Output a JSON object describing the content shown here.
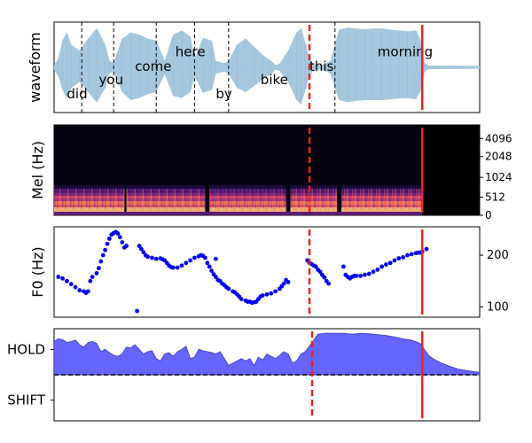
{
  "chart_data": [
    {
      "type": "area",
      "ylabel": "waveform",
      "words": [
        {
          "text": "did",
          "x": 0.03,
          "y": -0.65
        },
        {
          "text": "you",
          "x": 0.105,
          "y": -0.3
        },
        {
          "text": "come",
          "x": 0.19,
          "y": 0.02
        },
        {
          "text": "here",
          "x": 0.285,
          "y": 0.38
        },
        {
          "text": "by",
          "x": 0.38,
          "y": -0.65
        },
        {
          "text": "bike",
          "x": 0.485,
          "y": -0.3
        },
        {
          "text": "this",
          "x": 0.6,
          "y": 0.02
        },
        {
          "text": "morning",
          "x": 0.76,
          "y": 0.38
        }
      ],
      "word_boundaries": [
        0.065,
        0.14,
        0.24,
        0.33,
        0.41,
        0.66
      ],
      "envelope_x": [
        0.0,
        0.01,
        0.02,
        0.03,
        0.04,
        0.06,
        0.08,
        0.1,
        0.12,
        0.13,
        0.14,
        0.16,
        0.18,
        0.2,
        0.22,
        0.24,
        0.26,
        0.28,
        0.3,
        0.32,
        0.33,
        0.35,
        0.37,
        0.38,
        0.4,
        0.41,
        0.43,
        0.45,
        0.47,
        0.49,
        0.51,
        0.52,
        0.53,
        0.55,
        0.57,
        0.58,
        0.59,
        0.6,
        0.61,
        0.63,
        0.65,
        0.66,
        0.67,
        0.69,
        0.71,
        0.73,
        0.75,
        0.77,
        0.79,
        0.81,
        0.83,
        0.85,
        0.86,
        0.87,
        0.88,
        1.0
      ],
      "envelope_top": [
        0.05,
        0.2,
        0.65,
        0.85,
        0.55,
        0.4,
        0.7,
        0.95,
        0.55,
        0.15,
        0.1,
        0.7,
        0.85,
        0.8,
        0.7,
        0.65,
        0.15,
        0.8,
        0.9,
        0.75,
        0.2,
        0.72,
        0.65,
        0.15,
        0.1,
        0.15,
        0.55,
        0.7,
        0.5,
        0.3,
        0.15,
        0.05,
        0.08,
        0.4,
        0.85,
        0.95,
        0.6,
        0.2,
        0.05,
        0.05,
        0.15,
        0.55,
        0.92,
        0.97,
        0.95,
        0.93,
        0.95,
        0.95,
        0.92,
        0.9,
        0.88,
        0.9,
        0.7,
        0.1,
        0.04,
        0.03
      ],
      "envelope_bottom": [
        0.05,
        0.2,
        0.55,
        0.75,
        0.5,
        0.35,
        0.6,
        0.85,
        0.5,
        0.15,
        0.1,
        0.6,
        0.8,
        0.75,
        0.65,
        0.6,
        0.15,
        0.7,
        0.75,
        0.6,
        0.2,
        0.62,
        0.55,
        0.15,
        0.1,
        0.15,
        0.5,
        0.6,
        0.45,
        0.3,
        0.15,
        0.05,
        0.08,
        0.35,
        0.8,
        0.9,
        0.55,
        0.2,
        0.05,
        0.05,
        0.15,
        0.5,
        0.8,
        0.85,
        0.82,
        0.8,
        0.8,
        0.8,
        0.78,
        0.76,
        0.75,
        0.78,
        0.6,
        0.1,
        0.04,
        0.03
      ],
      "ylim": [
        -1,
        1
      ],
      "colors": {
        "waveform": "#a6c8de",
        "boundary": "#000000",
        "event": "#ee2222"
      }
    },
    {
      "type": "heatmap",
      "ylabel": "Mel (Hz)",
      "y_ticks": [
        "4096",
        "2048",
        "1024",
        "512",
        "0"
      ],
      "y_tick_positions": [
        0.85,
        0.65,
        0.42,
        0.2,
        0.0
      ],
      "speech_end": 0.865,
      "segments": [
        [
          0.0,
          0.165
        ],
        [
          0.17,
          0.355
        ],
        [
          0.365,
          0.545
        ],
        [
          0.555,
          0.665
        ],
        [
          0.675,
          0.865
        ]
      ],
      "colors": {
        "background": "#040410",
        "band_low": "#f2a570",
        "band_mid": "#c0365e",
        "band_high": "#5b1b78"
      }
    },
    {
      "type": "scatter",
      "ylabel": "F0 (Hz)",
      "y_ticks": [
        100,
        200
      ],
      "ylim": [
        80,
        255
      ],
      "points": [
        [
          0.01,
          158
        ],
        [
          0.02,
          155
        ],
        [
          0.03,
          150
        ],
        [
          0.04,
          144
        ],
        [
          0.05,
          138
        ],
        [
          0.06,
          132
        ],
        [
          0.07,
          130
        ],
        [
          0.075,
          127
        ],
        [
          0.08,
          130
        ],
        [
          0.085,
          150
        ],
        [
          0.09,
          158
        ],
        [
          0.1,
          165
        ],
        [
          0.105,
          175
        ],
        [
          0.11,
          188
        ],
        [
          0.115,
          200
        ],
        [
          0.12,
          210
        ],
        [
          0.125,
          222
        ],
        [
          0.13,
          232
        ],
        [
          0.135,
          240
        ],
        [
          0.14,
          243
        ],
        [
          0.145,
          245
        ],
        [
          0.15,
          242
        ],
        [
          0.155,
          235
        ],
        [
          0.16,
          225
        ],
        [
          0.165,
          215
        ],
        [
          0.17,
          218
        ],
        [
          0.195,
          92
        ],
        [
          0.2,
          218
        ],
        [
          0.205,
          212
        ],
        [
          0.21,
          206
        ],
        [
          0.215,
          200
        ],
        [
          0.22,
          197
        ],
        [
          0.23,
          195
        ],
        [
          0.24,
          193
        ],
        [
          0.25,
          194
        ],
        [
          0.255,
          192
        ],
        [
          0.26,
          190
        ],
        [
          0.265,
          185
        ],
        [
          0.27,
          180
        ],
        [
          0.275,
          177
        ],
        [
          0.28,
          176
        ],
        [
          0.29,
          176
        ],
        [
          0.3,
          180
        ],
        [
          0.31,
          185
        ],
        [
          0.32,
          190
        ],
        [
          0.33,
          195
        ],
        [
          0.34,
          198
        ],
        [
          0.345,
          200
        ],
        [
          0.35,
          199
        ],
        [
          0.355,
          195
        ],
        [
          0.36,
          185
        ],
        [
          0.365,
          178
        ],
        [
          0.37,
          170
        ],
        [
          0.375,
          163
        ],
        [
          0.38,
          158
        ],
        [
          0.385,
          152
        ],
        [
          0.39,
          150
        ],
        [
          0.395,
          145
        ],
        [
          0.4,
          142
        ],
        [
          0.405,
          138
        ],
        [
          0.41,
          135
        ],
        [
          0.42,
          130
        ],
        [
          0.425,
          128
        ],
        [
          0.43,
          124
        ],
        [
          0.435,
          120
        ],
        [
          0.44,
          115
        ],
        [
          0.45,
          112
        ],
        [
          0.455,
          110
        ],
        [
          0.46,
          110
        ],
        [
          0.465,
          108
        ],
        [
          0.47,
          109
        ],
        [
          0.475,
          110
        ],
        [
          0.48,
          115
        ],
        [
          0.485,
          120
        ],
        [
          0.49,
          122
        ],
        [
          0.5,
          124
        ],
        [
          0.51,
          126
        ],
        [
          0.52,
          130
        ],
        [
          0.53,
          135
        ],
        [
          0.535,
          140
        ],
        [
          0.54,
          145
        ],
        [
          0.545,
          152
        ],
        [
          0.55,
          148
        ],
        [
          0.38,
          193
        ],
        [
          0.595,
          190
        ],
        [
          0.6,
          185
        ],
        [
          0.605,
          183
        ],
        [
          0.61,
          180
        ],
        [
          0.615,
          178
        ],
        [
          0.62,
          172
        ],
        [
          0.625,
          168
        ],
        [
          0.63,
          162
        ],
        [
          0.635,
          157
        ],
        [
          0.64,
          150
        ],
        [
          0.645,
          145
        ],
        [
          0.68,
          178
        ],
        [
          0.685,
          162
        ],
        [
          0.69,
          158
        ],
        [
          0.695,
          155
        ],
        [
          0.7,
          158
        ],
        [
          0.705,
          160
        ],
        [
          0.71,
          160
        ],
        [
          0.72,
          160
        ],
        [
          0.73,
          162
        ],
        [
          0.74,
          164
        ],
        [
          0.75,
          168
        ],
        [
          0.76,
          172
        ],
        [
          0.77,
          178
        ],
        [
          0.78,
          182
        ],
        [
          0.79,
          185
        ],
        [
          0.8,
          190
        ],
        [
          0.81,
          194
        ],
        [
          0.82,
          196
        ],
        [
          0.83,
          200
        ],
        [
          0.84,
          202
        ],
        [
          0.85,
          204
        ],
        [
          0.855,
          205
        ],
        [
          0.86,
          205
        ],
        [
          0.865,
          207
        ],
        [
          0.875,
          212
        ]
      ],
      "colors": {
        "points": "#0000ee"
      }
    },
    {
      "type": "area",
      "y_tick_labels": [
        "HOLD",
        "SHIFT"
      ],
      "ylim": [
        -1,
        1
      ],
      "baseline": 0,
      "x": [
        0.0,
        0.01,
        0.02,
        0.03,
        0.04,
        0.05,
        0.06,
        0.07,
        0.08,
        0.09,
        0.1,
        0.11,
        0.12,
        0.13,
        0.14,
        0.15,
        0.16,
        0.17,
        0.18,
        0.19,
        0.2,
        0.21,
        0.22,
        0.23,
        0.24,
        0.25,
        0.26,
        0.27,
        0.28,
        0.29,
        0.3,
        0.31,
        0.32,
        0.33,
        0.34,
        0.35,
        0.36,
        0.37,
        0.38,
        0.39,
        0.4,
        0.41,
        0.42,
        0.43,
        0.44,
        0.45,
        0.46,
        0.47,
        0.48,
        0.49,
        0.5,
        0.51,
        0.52,
        0.53,
        0.54,
        0.55,
        0.56,
        0.57,
        0.58,
        0.59,
        0.6,
        0.62,
        0.64,
        0.66,
        0.68,
        0.7,
        0.72,
        0.74,
        0.76,
        0.78,
        0.8,
        0.82,
        0.84,
        0.86,
        0.87,
        0.88,
        0.89,
        0.9,
        0.91,
        0.92,
        0.93,
        0.94,
        0.95,
        0.97,
        1.0
      ],
      "y": [
        0.72,
        0.78,
        0.76,
        0.7,
        0.72,
        0.75,
        0.65,
        0.6,
        0.7,
        0.72,
        0.68,
        0.5,
        0.55,
        0.48,
        0.42,
        0.4,
        0.45,
        0.6,
        0.58,
        0.65,
        0.55,
        0.45,
        0.5,
        0.52,
        0.35,
        0.3,
        0.45,
        0.48,
        0.4,
        0.5,
        0.55,
        0.62,
        0.35,
        0.38,
        0.55,
        0.52,
        0.5,
        0.48,
        0.45,
        0.5,
        0.35,
        0.2,
        0.25,
        0.3,
        0.35,
        0.3,
        0.35,
        0.2,
        0.38,
        0.32,
        0.45,
        0.4,
        0.35,
        0.42,
        0.5,
        0.45,
        0.25,
        0.3,
        0.45,
        0.5,
        0.62,
        0.88,
        0.9,
        0.9,
        0.9,
        0.88,
        0.9,
        0.89,
        0.87,
        0.85,
        0.82,
        0.78,
        0.75,
        0.68,
        0.55,
        0.42,
        0.35,
        0.3,
        0.25,
        0.22,
        0.18,
        0.15,
        0.12,
        0.09,
        0.05
      ],
      "colors": {
        "fill": "#6666ff",
        "line": "#4444cc",
        "baseline": "#000000"
      }
    }
  ],
  "events": {
    "dashed_x": 0.6,
    "solid_x": 0.865,
    "color": "#ee2222"
  }
}
